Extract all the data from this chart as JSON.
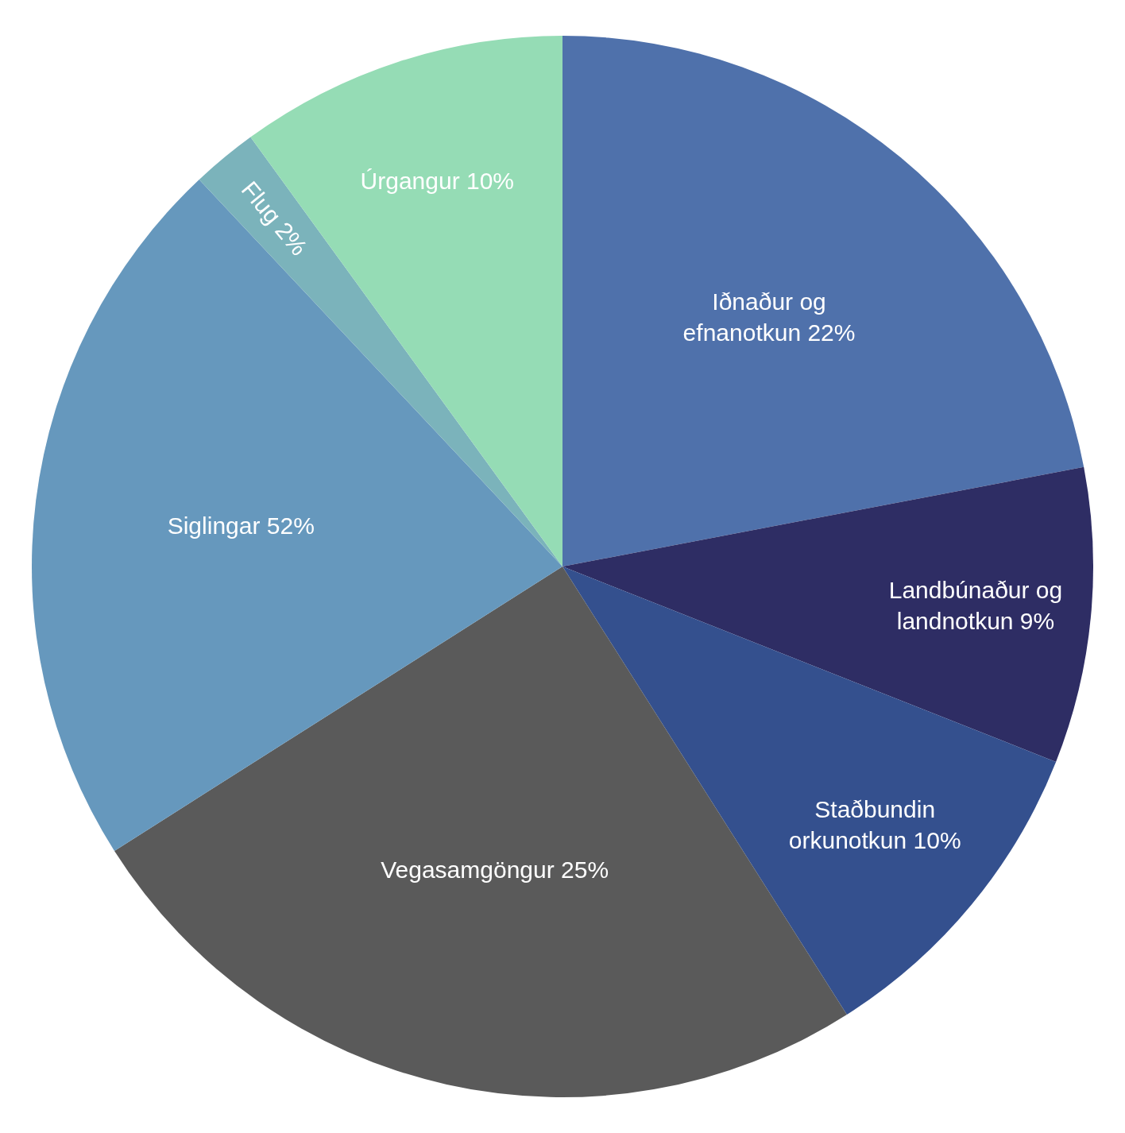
{
  "chart_data": {
    "type": "pie",
    "categories": [
      "Iðnaður og\nefnanotkun 22%",
      "Landbúnaður og\nlandnotkun 9%",
      "Staðbundin\norkunotkun 10%",
      "Vegasamgöngur 25%",
      "Siglingar 52%",
      "Flug 2%",
      "Úrgangur 10%"
    ],
    "values": [
      22,
      9,
      10,
      25,
      22,
      2,
      10
    ],
    "colors": [
      "#4f71ab",
      "#2e2d64",
      "#34508e",
      "#5a5a5a",
      "#6698bd",
      "#7bb3bb",
      "#95dcb5"
    ]
  }
}
